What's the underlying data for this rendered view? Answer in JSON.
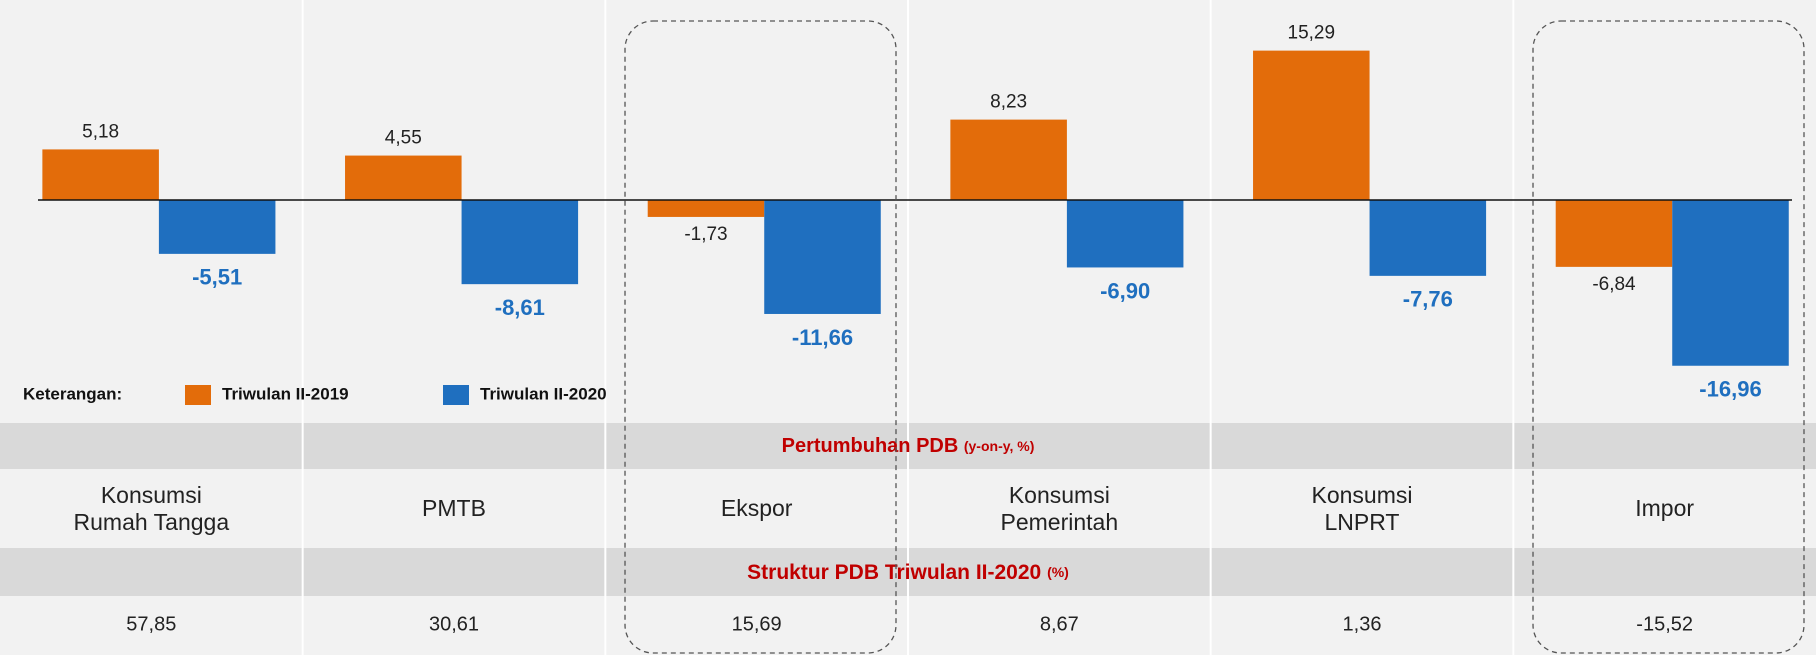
{
  "chart_data": {
    "type": "bar",
    "categories": [
      "Konsumsi Rumah Tangga",
      "PMTB",
      "Ekspor",
      "Konsumsi Pemerintah",
      "Konsumsi LNPRT",
      "Impor"
    ],
    "series": [
      {
        "name": "Triwulan II-2019",
        "color": "#e36c0a",
        "values": [
          5.18,
          4.55,
          -1.73,
          8.23,
          15.29,
          -6.84
        ],
        "value_labels": [
          "5,18",
          "4,55",
          "-1,73",
          "8,23",
          "15,29",
          "-6,84"
        ]
      },
      {
        "name": "Triwulan II-2020",
        "color": "#1f6fbf",
        "values": [
          -5.51,
          -8.61,
          -11.66,
          -6.9,
          -7.76,
          -16.96
        ],
        "value_labels": [
          "-5,51",
          "-8,61",
          "-11,66",
          "-6,90",
          "-7,76",
          "-16,96"
        ]
      }
    ],
    "ylim": [
      -22,
      20
    ],
    "legend_title": "Keterangan:",
    "legend": "bottom-left"
  },
  "table": {
    "growth_header": {
      "text": "Pertumbuhan PDB",
      "unit": "(y-on-y, %)"
    },
    "structure_header": {
      "text": "Struktur PDB Triwulan II-2020",
      "unit": "(%)"
    },
    "structure": [
      "57,85",
      "30,61",
      "15,69",
      "8,67",
      "1,36",
      "-15,52"
    ]
  }
}
